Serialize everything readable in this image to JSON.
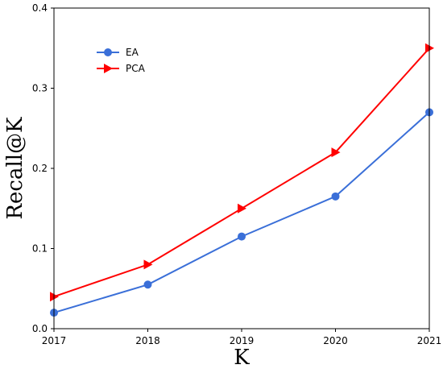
{
  "chart_data": {
    "type": "line",
    "xlabel": "K",
    "ylabel": "Recall@K",
    "x": [
      2017,
      2018,
      2019,
      2020,
      2021
    ],
    "xlim": [
      2017,
      2021
    ],
    "ylim": [
      0.0,
      0.4
    ],
    "xticks": [
      "2017",
      "2018",
      "2019",
      "2020",
      "2021"
    ],
    "yticks": [
      "0.0",
      "0.1",
      "0.2",
      "0.3",
      "0.4"
    ],
    "grid": false,
    "legend_position": "upper-left",
    "series": [
      {
        "name": "EA",
        "values": [
          0.02,
          0.055,
          0.115,
          0.165,
          0.27
        ],
        "color": "#3a6fd8",
        "marker": "circle"
      },
      {
        "name": "PCA",
        "values": [
          0.04,
          0.08,
          0.15,
          0.22,
          0.35
        ],
        "color": "#ff0000",
        "marker": "triangle-right"
      }
    ]
  }
}
